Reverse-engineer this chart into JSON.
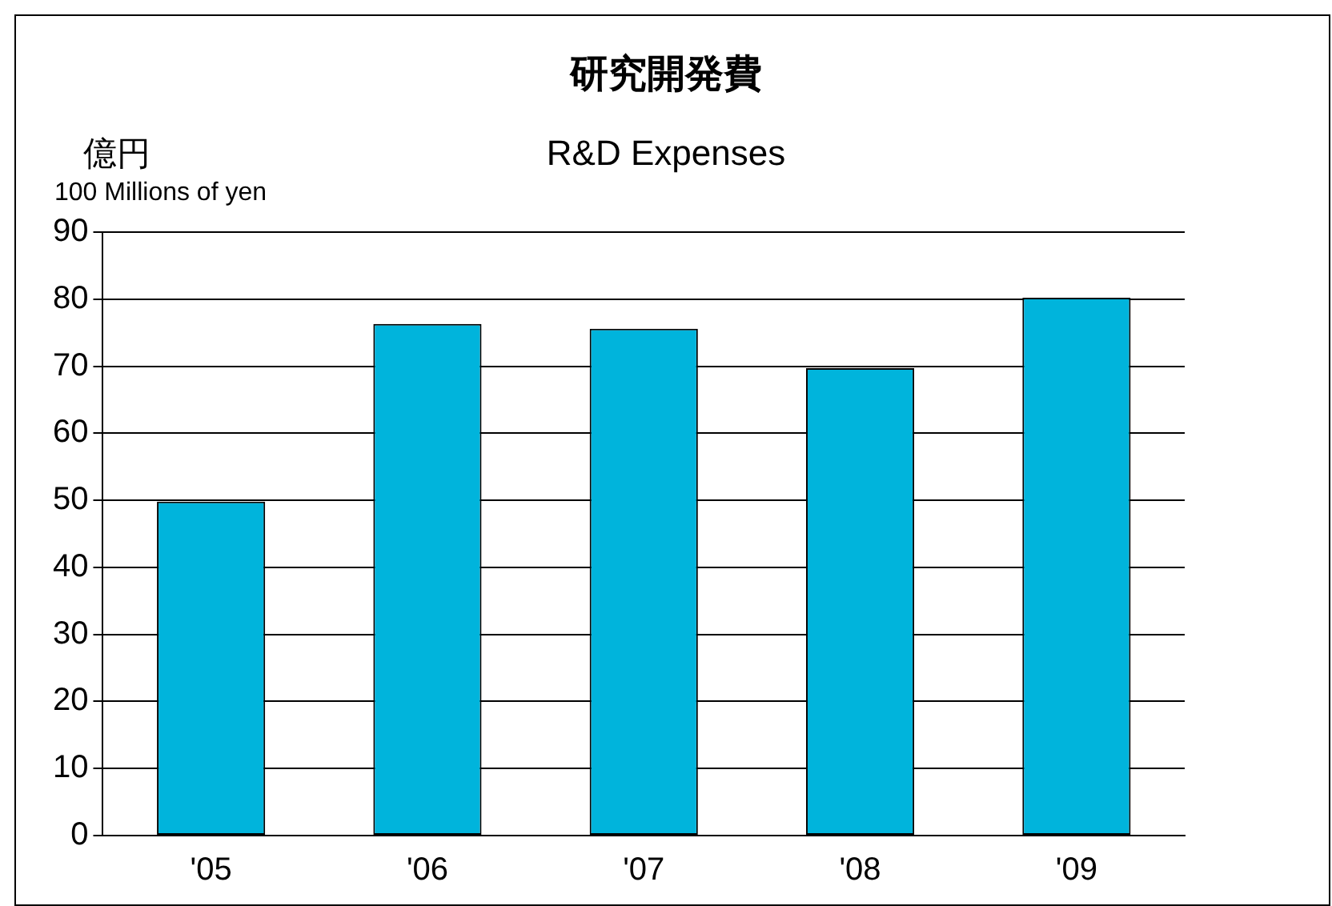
{
  "chart_data": {
    "type": "bar",
    "title": "研究開発費",
    "subtitle": "R&D Expenses",
    "ylabel": "億円\n100 Millions of yen",
    "categories": [
      "'05",
      "'06",
      "'07",
      "'08",
      "'09"
    ],
    "values": [
      49.8,
      76.3,
      75.6,
      69.7,
      80.2
    ],
    "color": "#00b4dc",
    "ylim": [
      0,
      90
    ],
    "yticks": [
      0,
      10,
      20,
      30,
      40,
      50,
      60,
      70,
      80,
      90
    ],
    "grid": "y",
    "legend": false
  }
}
